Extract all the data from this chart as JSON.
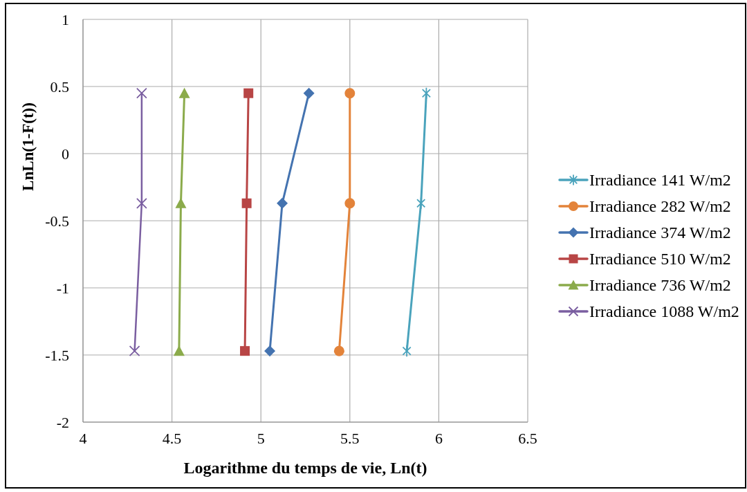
{
  "chart_data": {
    "type": "line",
    "xlabel": "Logarithme du temps de vie, Ln(t)",
    "ylabel": "LnLn(1-F(t))",
    "xlim": [
      4,
      6.5
    ],
    "xticks": [
      4,
      4.5,
      5,
      5.5,
      6,
      6.5
    ],
    "ylim": [
      -2,
      1
    ],
    "yticks": [
      -2,
      -1.5,
      -1,
      -0.5,
      0,
      0.5,
      1
    ],
    "grid": true,
    "legend": "right",
    "series": [
      {
        "name": "Irradiance 141 W/m2",
        "color": "#4aa3bc",
        "marker": "star",
        "x": [
          5.82,
          5.9,
          5.93
        ],
        "values": [
          -1.47,
          -0.37,
          0.45
        ]
      },
      {
        "name": "Irradiance 282 W/m2",
        "color": "#e3833a",
        "marker": "circle",
        "x": [
          5.44,
          5.5,
          5.5
        ],
        "values": [
          -1.47,
          -0.37,
          0.45
        ]
      },
      {
        "name": "Irradiance 374 W/m2",
        "color": "#4473b0",
        "marker": "diamond",
        "x": [
          5.05,
          5.12,
          5.27
        ],
        "values": [
          -1.47,
          -0.37,
          0.45
        ]
      },
      {
        "name": "Irradiance 510 W/m2",
        "color": "#b84545",
        "marker": "square",
        "x": [
          4.91,
          4.92,
          4.93
        ],
        "values": [
          -1.47,
          -0.37,
          0.45
        ]
      },
      {
        "name": "Irradiance 736 W/m2",
        "color": "#8bab4b",
        "marker": "triangle",
        "x": [
          4.54,
          4.55,
          4.57
        ],
        "values": [
          -1.47,
          -0.37,
          0.45
        ]
      },
      {
        "name": "Irradiance 1088 W/m2",
        "color": "#7a5ea0",
        "marker": "cross",
        "x": [
          4.29,
          4.33,
          4.33
        ],
        "values": [
          -1.47,
          -0.37,
          0.45
        ]
      }
    ]
  }
}
